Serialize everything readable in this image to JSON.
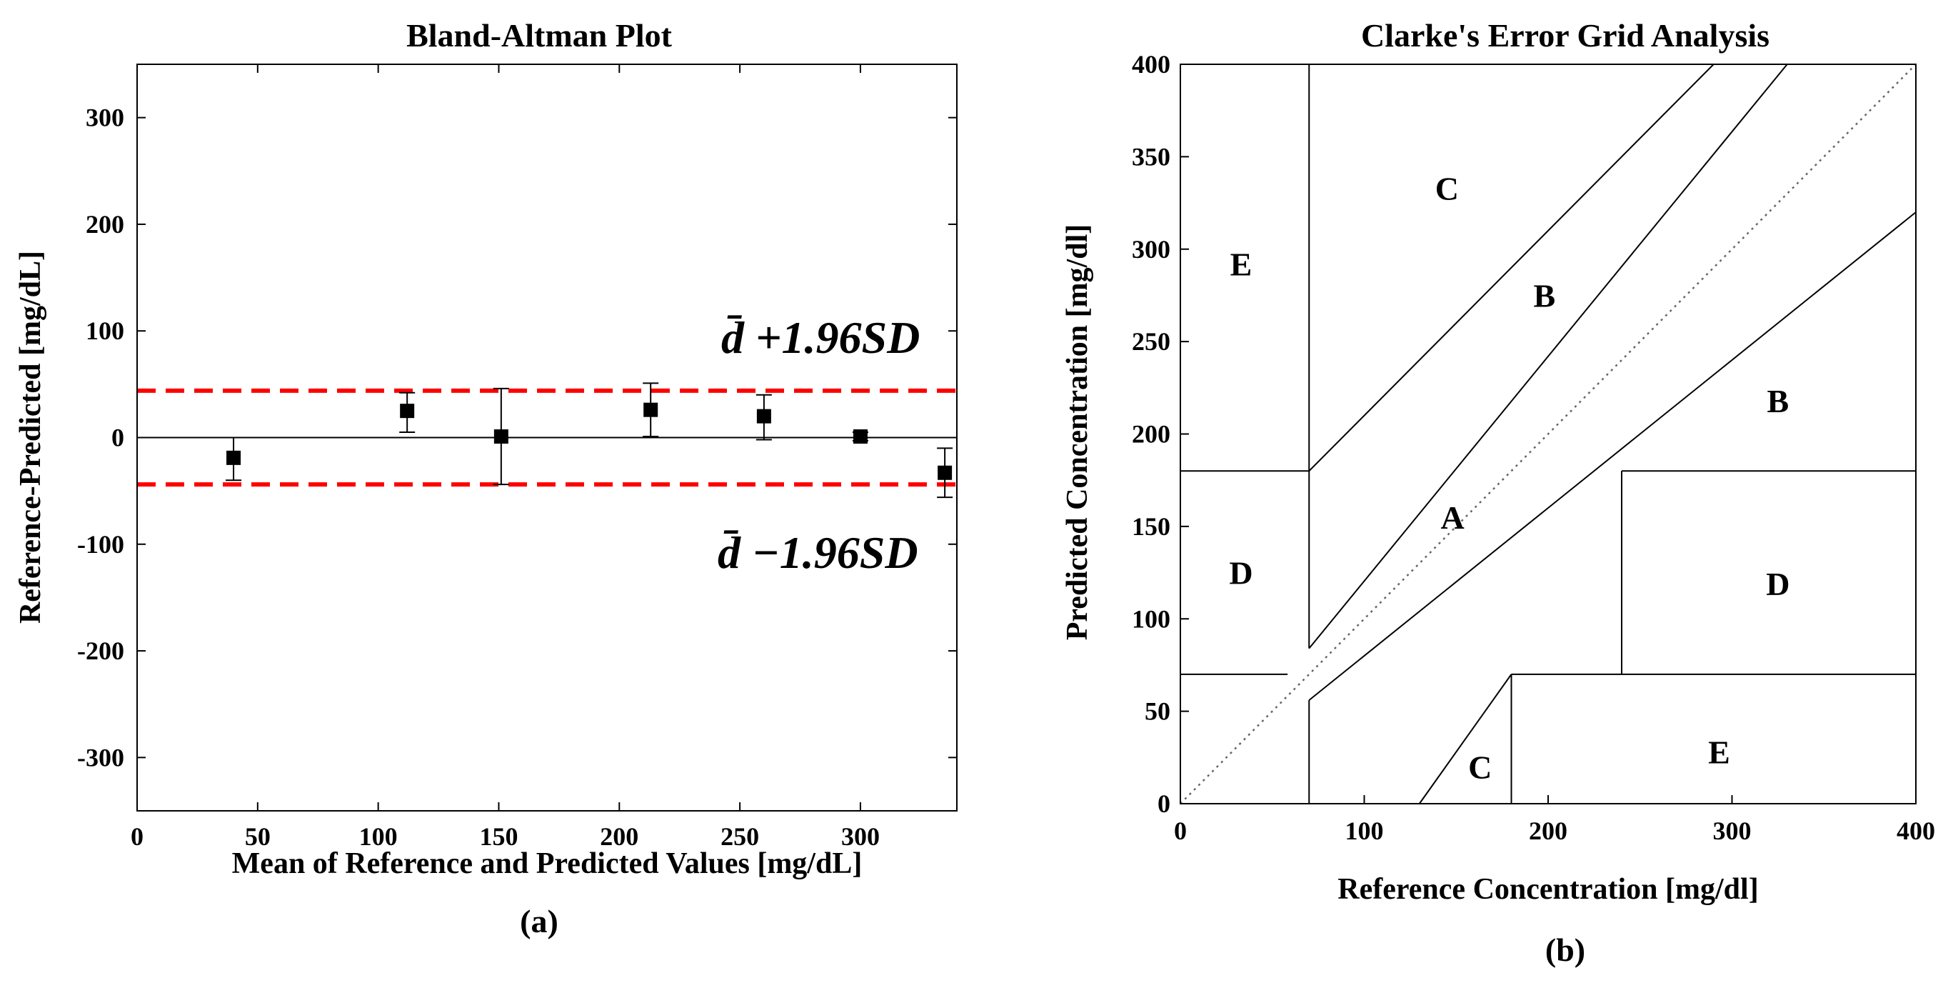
{
  "chart_data": [
    {
      "type": "scatter",
      "id": "bland-altman",
      "title": "Bland-Altman Plot",
      "xlabel": "Mean of Reference and Predicted Values [mg/dL]",
      "ylabel": "Reference-Predicted [mg/dL]",
      "panel_label": "(a)",
      "xlim": [
        0,
        340
      ],
      "ylim": [
        -350,
        350
      ],
      "xticks": [
        0,
        50,
        100,
        150,
        200,
        250,
        300
      ],
      "yticks": [
        -300,
        -200,
        -100,
        0,
        100,
        200,
        300
      ],
      "points": [
        {
          "x": 40,
          "y": -19,
          "err_low": -40,
          "err_high": 0
        },
        {
          "x": 112,
          "y": 25,
          "err_low": 5,
          "err_high": 42
        },
        {
          "x": 151,
          "y": 1,
          "err_low": -44,
          "err_high": 46
        },
        {
          "x": 213,
          "y": 26,
          "err_low": 1,
          "err_high": 51
        },
        {
          "x": 260,
          "y": 20,
          "err_low": -2,
          "err_high": 40
        },
        {
          "x": 300,
          "y": 1,
          "err_low": -3,
          "err_high": 5
        },
        {
          "x": 335,
          "y": -33,
          "err_low": -56,
          "err_high": -10
        }
      ],
      "mean_line": 0,
      "upper_limit": 44,
      "lower_limit": -44,
      "limit_color": "#ff0000",
      "upper_label": "d̄ +1.96SD",
      "lower_label": "d̄ −1.96SD"
    },
    {
      "type": "error-grid",
      "id": "clarke-error-grid",
      "title": "Clarke's Error Grid Analysis",
      "xlabel": "Reference Concentration [mg/dl]",
      "ylabel": "Predicted Concentration [mg/dl]",
      "panel_label": "(b)",
      "xlim": [
        0,
        400
      ],
      "ylim": [
        0,
        400
      ],
      "xticks": [
        0,
        100,
        200,
        300,
        400
      ],
      "yticks": [
        0,
        50,
        100,
        150,
        200,
        250,
        300,
        350,
        400
      ],
      "boundaries": [
        [
          [
            0,
            70
          ],
          [
            58.3,
            70
          ]
        ],
        [
          [
            70,
            84
          ],
          [
            70,
            400
          ]
        ],
        [
          [
            0,
            180
          ],
          [
            70,
            180
          ]
        ],
        [
          [
            70,
            180
          ],
          [
            290,
            400
          ]
        ],
        [
          [
            70,
            84
          ],
          [
            330,
            400
          ]
        ],
        [
          [
            70,
            56
          ],
          [
            70,
            0
          ]
        ],
        [
          [
            70,
            56
          ],
          [
            400,
            320
          ]
        ],
        [
          [
            130,
            0
          ],
          [
            180,
            70
          ]
        ],
        [
          [
            180,
            0
          ],
          [
            180,
            70
          ]
        ],
        [
          [
            180,
            70
          ],
          [
            400,
            70
          ]
        ],
        [
          [
            240,
            70
          ],
          [
            240,
            180
          ]
        ],
        [
          [
            240,
            180
          ],
          [
            400,
            180
          ]
        ]
      ],
      "diagonal": [
        [
          0,
          0
        ],
        [
          400,
          400
        ]
      ],
      "regions": [
        {
          "label": "A",
          "x": 148,
          "y": 155
        },
        {
          "label": "B",
          "x": 198,
          "y": 275
        },
        {
          "label": "B",
          "x": 325,
          "y": 218
        },
        {
          "label": "C",
          "x": 145,
          "y": 333
        },
        {
          "label": "C",
          "x": 163,
          "y": 20
        },
        {
          "label": "D",
          "x": 33,
          "y": 125
        },
        {
          "label": "D",
          "x": 325,
          "y": 119
        },
        {
          "label": "E",
          "x": 33,
          "y": 292
        },
        {
          "label": "E",
          "x": 293,
          "y": 28
        }
      ]
    }
  ]
}
